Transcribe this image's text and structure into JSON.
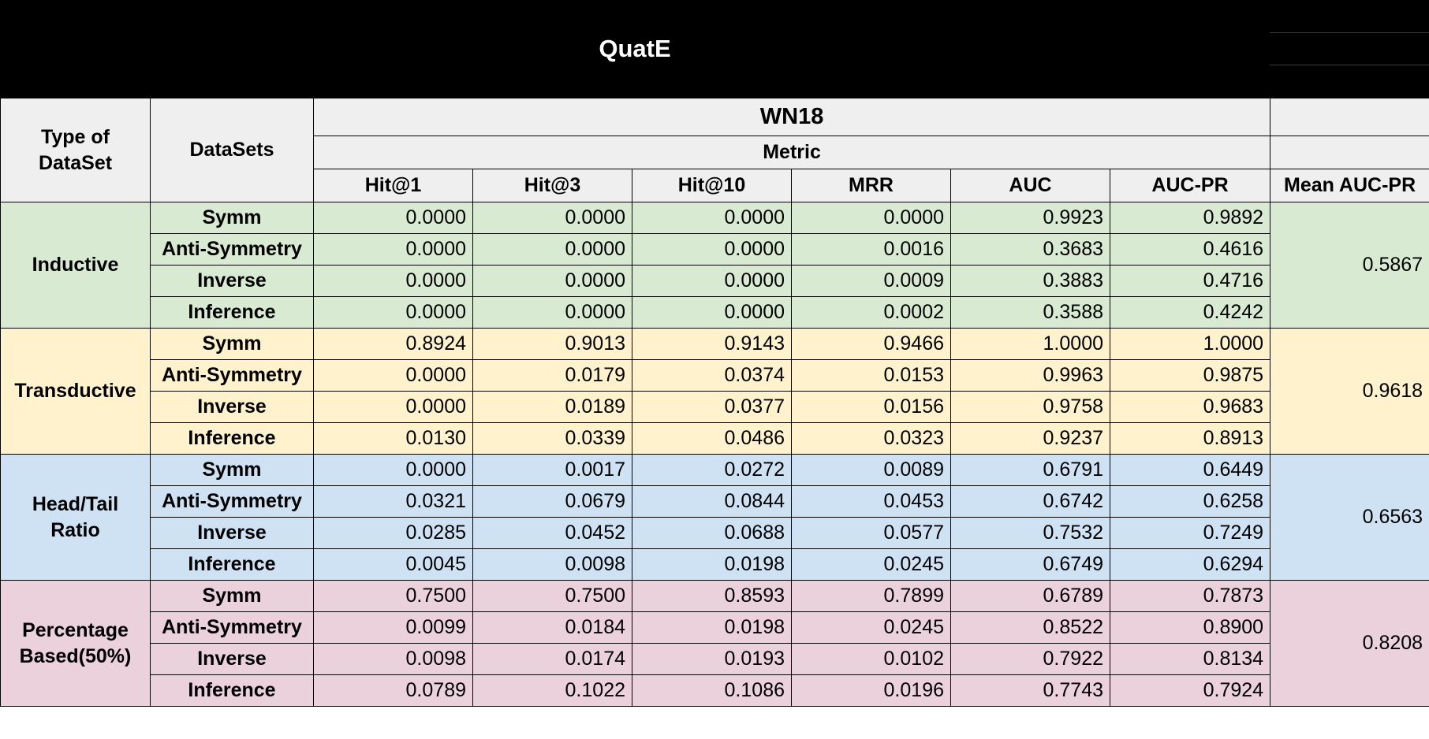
{
  "title": "QuatE",
  "headers": {
    "type_of_dataset": "Type of DataSet",
    "datasets": "DataSets",
    "dataset_name": "WN18",
    "metric": "Metric",
    "columns": [
      "Hit@1",
      "Hit@3",
      "Hit@10",
      "MRR",
      "AUC",
      "AUC-PR"
    ],
    "mean": "Mean AUC-PR"
  },
  "groups": [
    {
      "type": "Inductive",
      "color": "#d9ead3",
      "mean_auc_pr": "0.5867",
      "rows": [
        {
          "name": "Symm",
          "values": [
            "0.0000",
            "0.0000",
            "0.0000",
            "0.0000",
            "0.9923",
            "0.9892"
          ]
        },
        {
          "name": "Anti-Symmetry",
          "values": [
            "0.0000",
            "0.0000",
            "0.0000",
            "0.0016",
            "0.3683",
            "0.4616"
          ]
        },
        {
          "name": "Inverse",
          "values": [
            "0.0000",
            "0.0000",
            "0.0000",
            "0.0009",
            "0.3883",
            "0.4716"
          ]
        },
        {
          "name": "Inference",
          "values": [
            "0.0000",
            "0.0000",
            "0.0000",
            "0.0002",
            "0.3588",
            "0.4242"
          ]
        }
      ]
    },
    {
      "type": "Transductive",
      "color": "#fff2cc",
      "mean_auc_pr": "0.9618",
      "rows": [
        {
          "name": "Symm",
          "values": [
            "0.8924",
            "0.9013",
            "0.9143",
            "0.9466",
            "1.0000",
            "1.0000"
          ]
        },
        {
          "name": "Anti-Symmetry",
          "values": [
            "0.0000",
            "0.0179",
            "0.0374",
            "0.0153",
            "0.9963",
            "0.9875"
          ]
        },
        {
          "name": "Inverse",
          "values": [
            "0.0000",
            "0.0189",
            "0.0377",
            "0.0156",
            "0.9758",
            "0.9683"
          ]
        },
        {
          "name": "Inference",
          "values": [
            "0.0130",
            "0.0339",
            "0.0486",
            "0.0323",
            "0.9237",
            "0.8913"
          ]
        }
      ]
    },
    {
      "type": "Head/Tail Ratio",
      "color": "#cfe2f3",
      "mean_auc_pr": "0.6563",
      "rows": [
        {
          "name": "Symm",
          "values": [
            "0.0000",
            "0.0017",
            "0.0272",
            "0.0089",
            "0.6791",
            "0.6449"
          ]
        },
        {
          "name": "Anti-Symmetry",
          "values": [
            "0.0321",
            "0.0679",
            "0.0844",
            "0.0453",
            "0.6742",
            "0.6258"
          ]
        },
        {
          "name": "Inverse",
          "values": [
            "0.0285",
            "0.0452",
            "0.0688",
            "0.0577",
            "0.7532",
            "0.7249"
          ]
        },
        {
          "name": "Inference",
          "values": [
            "0.0045",
            "0.0098",
            "0.0198",
            "0.0245",
            "0.6749",
            "0.6294"
          ]
        }
      ]
    },
    {
      "type": "Percentage Based(50%)",
      "color": "#ead1dc",
      "mean_auc_pr": "0.8208",
      "rows": [
        {
          "name": "Symm",
          "values": [
            "0.7500",
            "0.7500",
            "0.8593",
            "0.7899",
            "0.6789",
            "0.7873"
          ]
        },
        {
          "name": "Anti-Symmetry",
          "values": [
            "0.0099",
            "0.0184",
            "0.0198",
            "0.0245",
            "0.8522",
            "0.8900"
          ]
        },
        {
          "name": "Inverse",
          "values": [
            "0.0098",
            "0.0174",
            "0.0193",
            "0.0102",
            "0.7922",
            "0.8134"
          ]
        },
        {
          "name": "Inference",
          "values": [
            "0.0789",
            "0.1022",
            "0.1086",
            "0.0196",
            "0.7743",
            "0.7924"
          ]
        }
      ]
    }
  ]
}
